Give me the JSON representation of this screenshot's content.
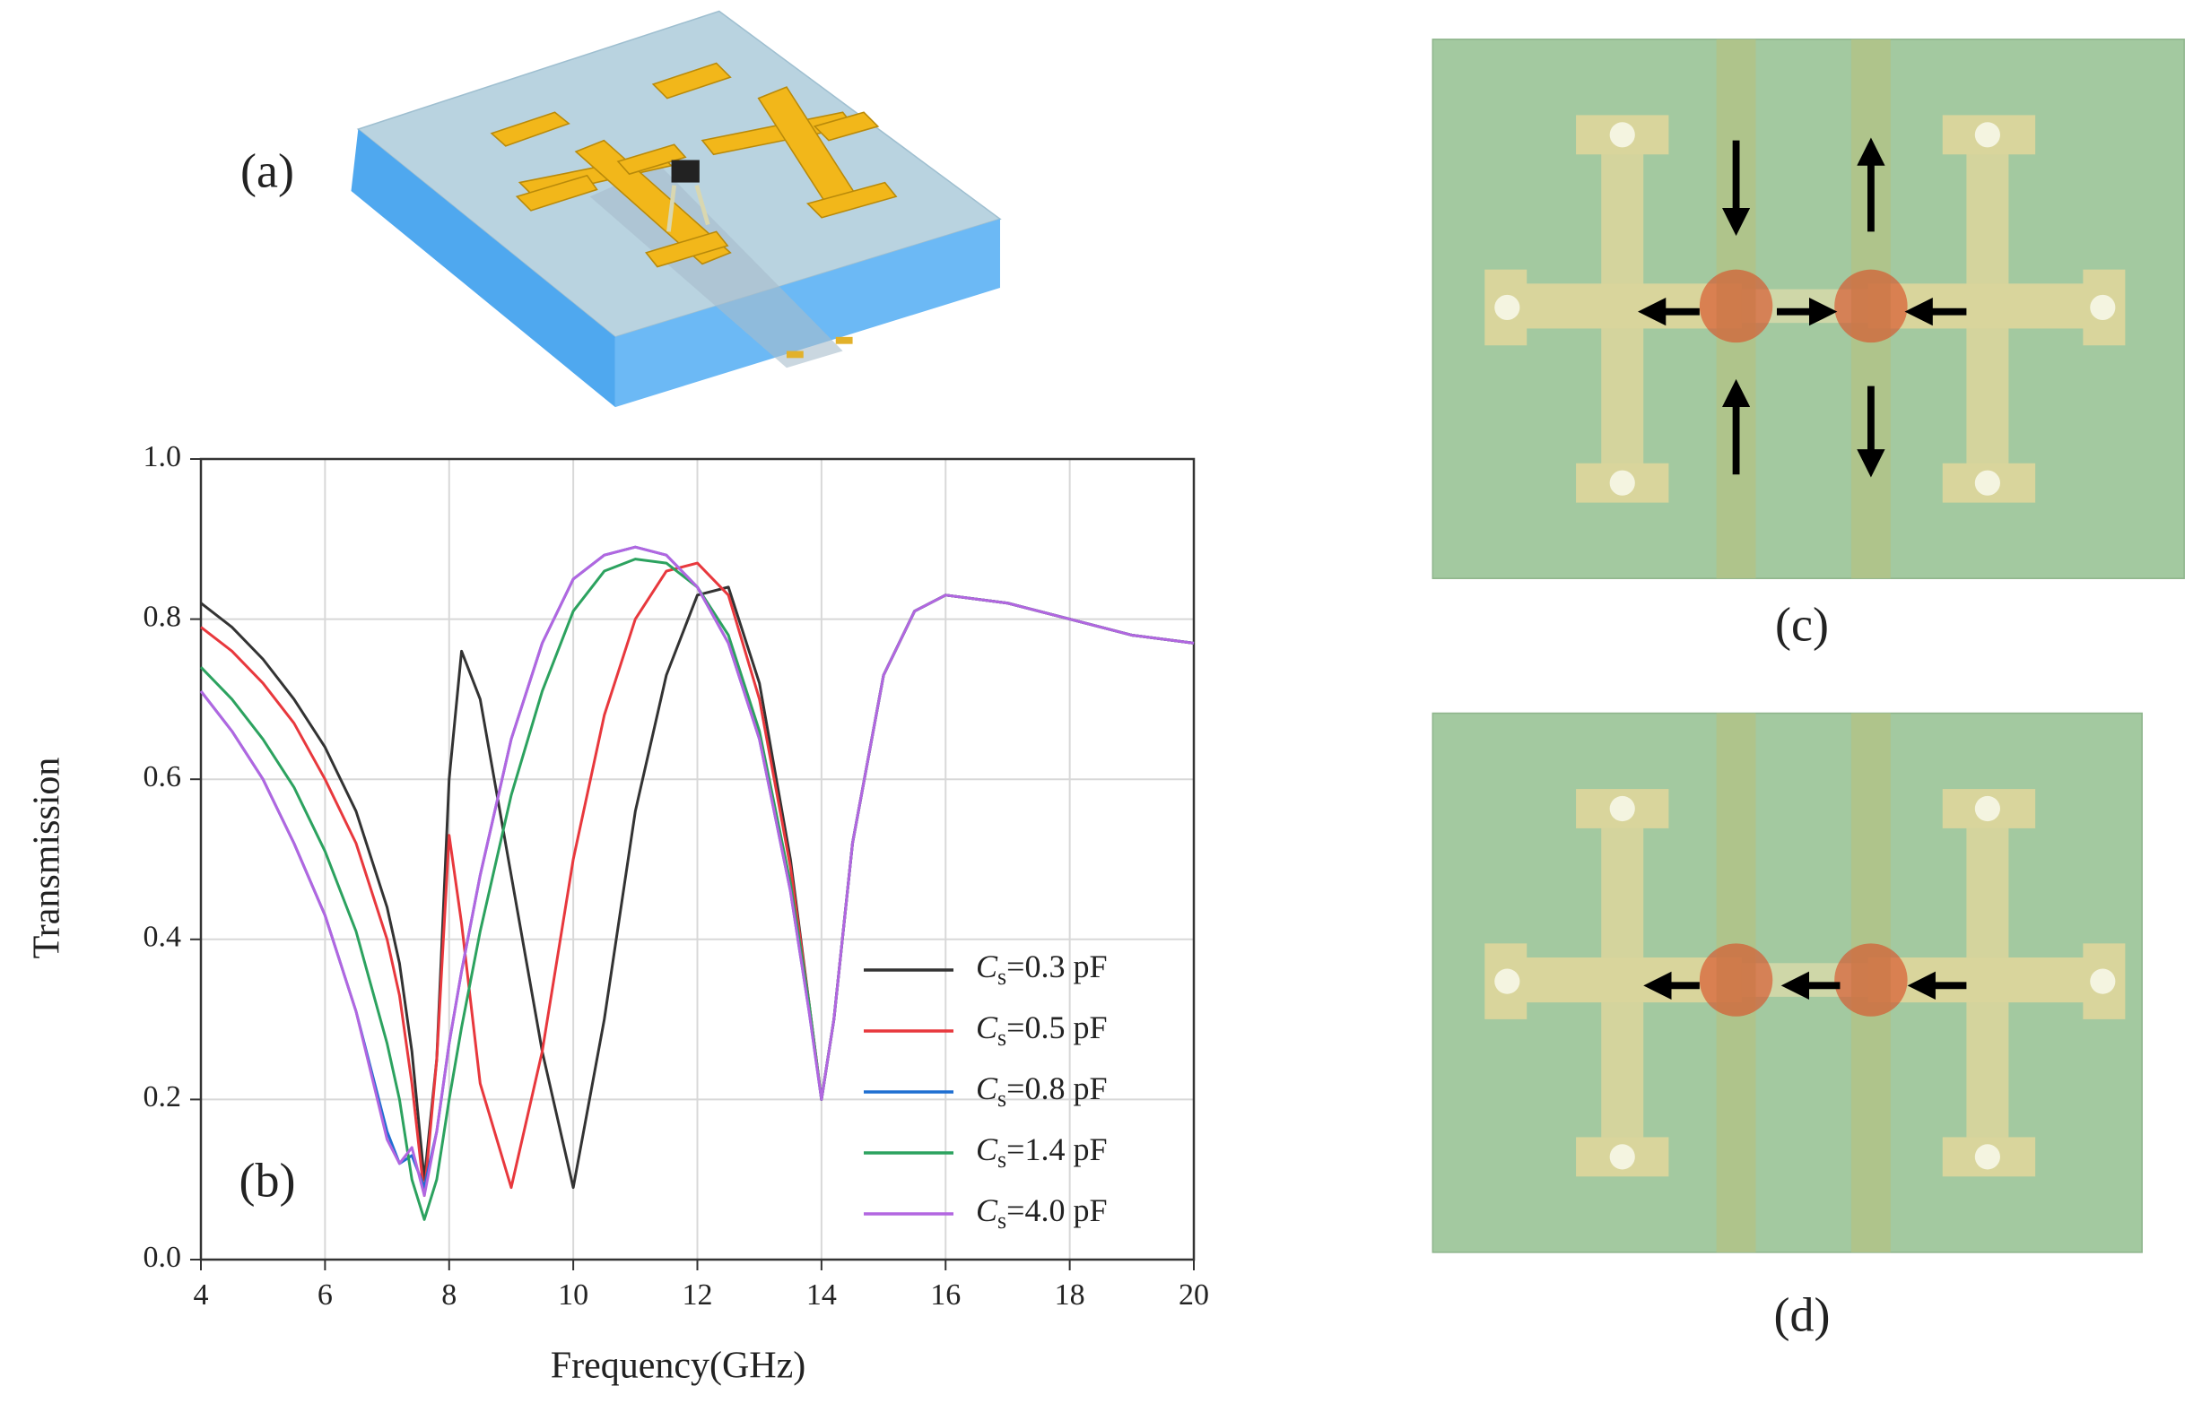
{
  "panels": {
    "a": "(a)",
    "c": "(c)",
    "d": "(d)"
  },
  "chart_data": {
    "type": "line",
    "annotation": "(b)",
    "xlabel": "Frequency(GHz)",
    "ylabel": "Transmission",
    "x": [
      4,
      4.5,
      5,
      5.5,
      6,
      6.5,
      7,
      7.2,
      7.4,
      7.6,
      7.8,
      8,
      8.2,
      8.5,
      9,
      9.5,
      10,
      10.5,
      11,
      11.5,
      12,
      12.5,
      13,
      13.5,
      13.8,
      14,
      14.2,
      14.5,
      15,
      15.5,
      16,
      17,
      18,
      19,
      20
    ],
    "xlim": [
      4,
      20
    ],
    "xticks": [
      4,
      6,
      8,
      10,
      12,
      14,
      16,
      18,
      20
    ],
    "ylim": [
      0,
      1
    ],
    "yticks": [
      {
        "value": 0,
        "label": "0.0"
      },
      {
        "value": 0.2,
        "label": "0.2"
      },
      {
        "value": 0.4,
        "label": "0.4"
      },
      {
        "value": 0.6,
        "label": "0.6"
      },
      {
        "value": 0.8,
        "label": "0.8"
      },
      {
        "value": 1,
        "label": "1.0"
      }
    ],
    "grid": true,
    "legend": "lower right",
    "series": [
      {
        "name": "Cs=0.3 pF",
        "color": "#333333",
        "values": [
          0.82,
          0.79,
          0.75,
          0.7,
          0.64,
          0.56,
          0.44,
          0.37,
          0.26,
          0.1,
          0.25,
          0.6,
          0.76,
          0.7,
          0.48,
          0.26,
          0.09,
          0.3,
          0.56,
          0.73,
          0.83,
          0.84,
          0.72,
          0.5,
          0.32,
          0.2,
          0.3,
          0.52,
          0.73,
          0.81,
          0.83,
          0.82,
          0.8,
          0.78,
          0.77
        ]
      },
      {
        "name": "Cs=0.5 pF",
        "color": "#e8383d",
        "values": [
          0.79,
          0.76,
          0.72,
          0.67,
          0.6,
          0.52,
          0.4,
          0.33,
          0.22,
          0.08,
          0.25,
          0.53,
          0.42,
          0.22,
          0.09,
          0.26,
          0.5,
          0.68,
          0.8,
          0.86,
          0.87,
          0.83,
          0.7,
          0.49,
          0.32,
          0.2,
          0.3,
          0.52,
          0.73,
          0.81,
          0.83,
          0.82,
          0.8,
          0.78,
          0.77
        ]
      },
      {
        "name": "Cs=0.8 pF",
        "color": "#1f6fd1",
        "values": [
          0.71,
          0.66,
          0.6,
          0.52,
          0.43,
          0.31,
          0.16,
          0.12,
          0.13,
          0.09,
          0.16,
          0.27,
          0.36,
          0.48,
          0.65,
          0.77,
          0.85,
          0.88,
          0.89,
          0.88,
          0.84,
          0.77,
          0.65,
          0.46,
          0.31,
          0.2,
          0.3,
          0.52,
          0.73,
          0.81,
          0.83,
          0.82,
          0.8,
          0.78,
          0.77
        ]
      },
      {
        "name": "Cs=1.4 pF",
        "color": "#2ca25f",
        "values": [
          0.74,
          0.7,
          0.65,
          0.59,
          0.51,
          0.41,
          0.27,
          0.2,
          0.1,
          0.05,
          0.1,
          0.2,
          0.29,
          0.41,
          0.58,
          0.71,
          0.81,
          0.86,
          0.875,
          0.87,
          0.84,
          0.78,
          0.66,
          0.47,
          0.32,
          0.2,
          0.3,
          0.52,
          0.73,
          0.81,
          0.83,
          0.82,
          0.8,
          0.78,
          0.77
        ]
      },
      {
        "name": "Cs=4.0 pF",
        "color": "#b266e0",
        "values": [
          0.71,
          0.66,
          0.6,
          0.52,
          0.43,
          0.31,
          0.15,
          0.12,
          0.14,
          0.08,
          0.16,
          0.27,
          0.36,
          0.48,
          0.65,
          0.77,
          0.85,
          0.88,
          0.89,
          0.88,
          0.84,
          0.77,
          0.65,
          0.46,
          0.31,
          0.2,
          0.3,
          0.52,
          0.73,
          0.81,
          0.83,
          0.82,
          0.8,
          0.78,
          0.77
        ]
      }
    ]
  }
}
